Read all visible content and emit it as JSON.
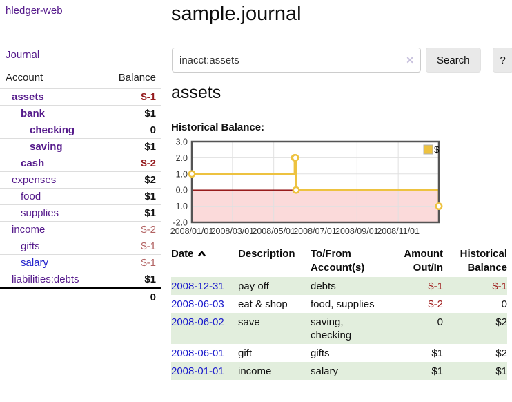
{
  "app": {
    "brand": "hledger-web",
    "nav": {
      "journal": "Journal"
    }
  },
  "colors": {
    "link_purple": "#551a8b",
    "link_blue": "#2323cc",
    "negative_strong": "#951b1e",
    "negative_soft": "#b26262",
    "row_green": "#e2eedd",
    "chart_line_gold": "#edc240",
    "chart_negative_region": "#fbdada",
    "chart_zero_line": "#8b0000"
  },
  "sidebar": {
    "columns": {
      "account": "Account",
      "balance": "Balance"
    },
    "rows": [
      {
        "name": "assets",
        "balance": "$-1",
        "indent": 1,
        "bold": true,
        "neg": "strong"
      },
      {
        "name": "bank",
        "balance": "$1",
        "indent": 2,
        "bold": true
      },
      {
        "name": "checking",
        "balance": "0",
        "indent": 3,
        "bold": true
      },
      {
        "name": "saving",
        "balance": "$1",
        "indent": 3,
        "bold": true
      },
      {
        "name": "cash",
        "balance": "$-2",
        "indent": 2,
        "bold": true,
        "neg": "strong"
      },
      {
        "name": "expenses",
        "balance": "$2",
        "indent": 1,
        "bold": false
      },
      {
        "name": "food",
        "balance": "$1",
        "indent": 2,
        "bold": false
      },
      {
        "name": "supplies",
        "balance": "$1",
        "indent": 2,
        "bold": false
      },
      {
        "name": "income",
        "balance": "$-2",
        "indent": 1,
        "bold": false,
        "neg": "soft"
      },
      {
        "name": "gifts",
        "balance": "$-1",
        "indent": 2,
        "bold": false,
        "neg": "soft"
      },
      {
        "name": "salary",
        "balance": "$-1",
        "indent": 2,
        "bold": false,
        "neg": "soft",
        "unvisited": true
      },
      {
        "name": "liabilities:debts",
        "balance": "$1",
        "indent": 1,
        "bold": false
      }
    ],
    "total": "0"
  },
  "main": {
    "title": "sample.journal",
    "search": {
      "value": "inacct:assets",
      "clear": "✕",
      "search_button": "Search",
      "help_button": "?"
    },
    "account_heading": "assets",
    "chart_title": "Historical Balance:"
  },
  "chart_data": {
    "type": "line",
    "step": true,
    "title": "Historical Balance:",
    "series": [
      {
        "name": "$",
        "color": "#edc240",
        "points": [
          [
            "2008-01-01",
            1
          ],
          [
            "2008-06-01",
            2
          ],
          [
            "2008-06-02",
            2
          ],
          [
            "2008-06-03",
            0
          ],
          [
            "2008-12-31",
            -1
          ]
        ]
      }
    ],
    "xlim": [
      "2008-01-01",
      "2008-12-31"
    ],
    "ylim": [
      -2,
      3
    ],
    "x_ticks": [
      "2008/01/01",
      "2008/03/01",
      "2008/05/01",
      "2008/07/01",
      "2008/09/01",
      "2008/11/01"
    ],
    "y_ticks": [
      "3.0",
      "2.0",
      "1.0",
      "0.0",
      "-1.0",
      "-2.0"
    ],
    "grid": true,
    "legend_position": "top-right",
    "negative_region_shaded": true
  },
  "register": {
    "headers": [
      "Date",
      "Description",
      "To/From Account(s)",
      "Amount Out/In",
      "Historical Balance"
    ],
    "sort": {
      "column": "Date",
      "direction": "ascending"
    },
    "rows": [
      {
        "date": "2008-12-31",
        "description": "pay off",
        "accounts": "debts",
        "amount": "$-1",
        "balance": "$-1"
      },
      {
        "date": "2008-06-03",
        "description": "eat & shop",
        "accounts": "food, supplies",
        "amount": "$-2",
        "balance": "0"
      },
      {
        "date": "2008-06-02",
        "description": "save",
        "accounts": "saving,\nchecking",
        "amount": "0",
        "balance": "$2"
      },
      {
        "date": "2008-06-01",
        "description": "gift",
        "accounts": "gifts",
        "amount": "$1",
        "balance": "$2"
      },
      {
        "date": "2008-01-01",
        "description": "income",
        "accounts": "salary",
        "amount": "$1",
        "balance": "$1"
      }
    ]
  }
}
